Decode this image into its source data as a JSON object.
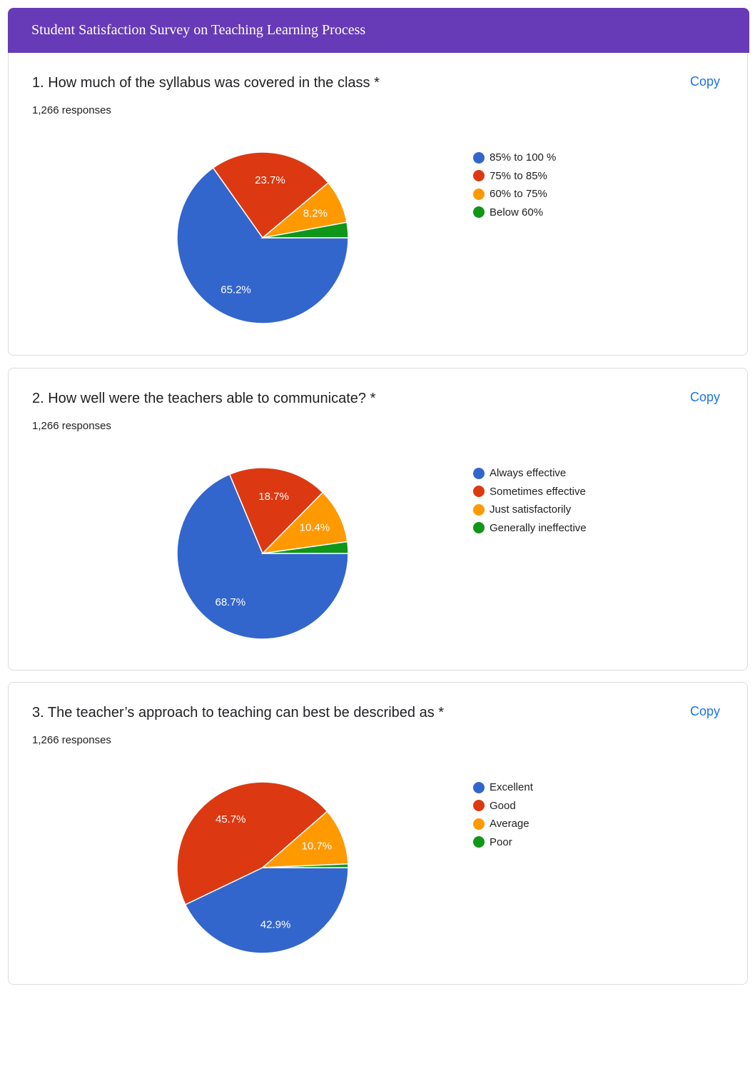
{
  "header": {
    "title": "Student Satisfaction Survey on Teaching Learning Process"
  },
  "colors": {
    "banner": "#673ab7",
    "link": "#1a73e8",
    "series": [
      "#3366cc",
      "#dc3912",
      "#ff9900",
      "#109618"
    ]
  },
  "questions": [
    {
      "title": "1. How much of the syllabus was covered in the class *",
      "responses": "1,266 responses",
      "copy_label": "Copy"
    },
    {
      "title": "2. How well were the teachers able to communicate? *",
      "responses": "1,266 responses",
      "copy_label": "Copy"
    },
    {
      "title": "3. The teacher’s approach to teaching can best be described as *",
      "responses": "1,266 responses",
      "copy_label": "Copy"
    }
  ],
  "chart_data": [
    {
      "type": "pie",
      "categories": [
        "85% to 100 %",
        "75% to 85%",
        "60% to 75%",
        "Below 60%"
      ],
      "values": [
        65.2,
        23.7,
        8.2,
        2.9
      ],
      "data_labels": [
        "65.2%",
        "23.7%",
        "8.2%",
        ""
      ],
      "legend": "right"
    },
    {
      "type": "pie",
      "categories": [
        "Always effective",
        "Sometimes effective",
        "Just satisfactorily",
        "Generally ineffective"
      ],
      "values": [
        68.7,
        18.7,
        10.4,
        2.2
      ],
      "data_labels": [
        "68.7%",
        "18.7%",
        "10.4%",
        ""
      ],
      "legend": "right"
    },
    {
      "type": "pie",
      "categories": [
        "Excellent",
        "Good",
        "Average",
        "Poor"
      ],
      "values": [
        42.9,
        45.7,
        10.7,
        0.7
      ],
      "data_labels": [
        "42.9%",
        "45.7%",
        "10.7%",
        ""
      ],
      "legend": "right"
    }
  ]
}
